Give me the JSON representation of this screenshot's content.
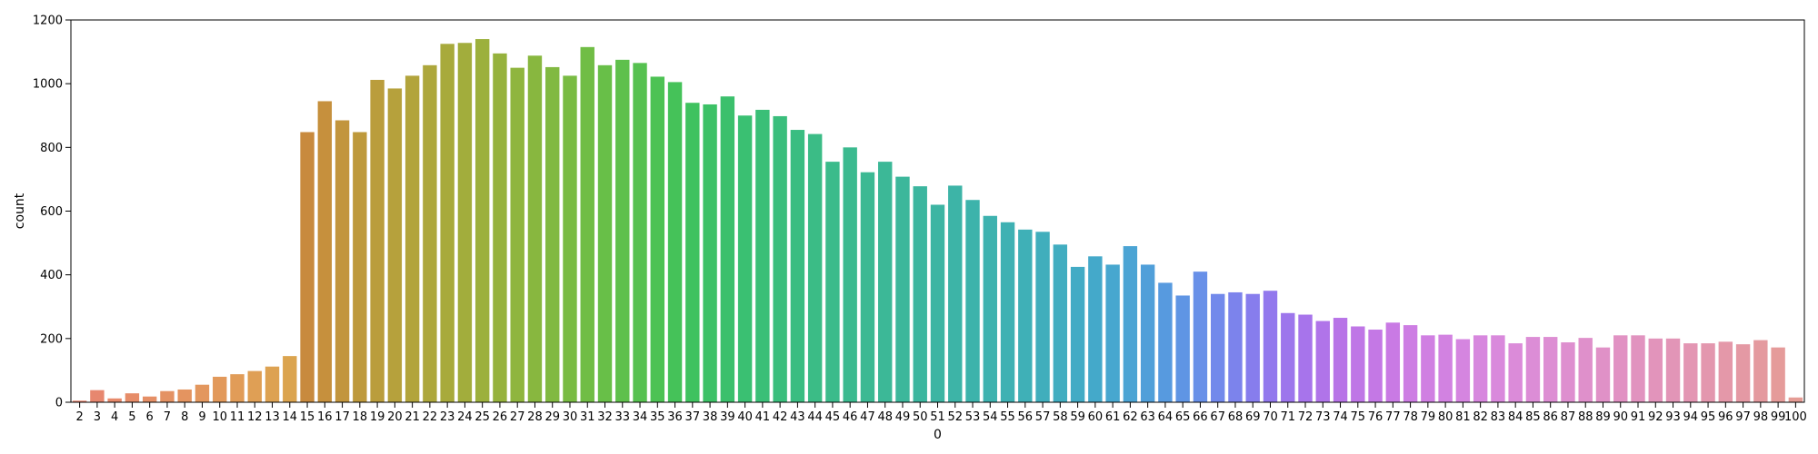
{
  "chart_data": {
    "type": "bar",
    "xlabel": "0",
    "ylabel": "count",
    "ylim": [
      0,
      1200
    ],
    "yticks": [
      0,
      200,
      400,
      600,
      800,
      1000,
      1200
    ],
    "grid": false,
    "legend": "none",
    "categories": [
      "2",
      "3",
      "4",
      "5",
      "6",
      "7",
      "8",
      "9",
      "10",
      "11",
      "12",
      "13",
      "14",
      "15",
      "16",
      "17",
      "18",
      "19",
      "20",
      "21",
      "22",
      "23",
      "24",
      "25",
      "26",
      "27",
      "28",
      "29",
      "30",
      "31",
      "32",
      "33",
      "34",
      "35",
      "36",
      "37",
      "38",
      "39",
      "40",
      "41",
      "42",
      "43",
      "44",
      "45",
      "46",
      "47",
      "48",
      "49",
      "50",
      "51",
      "52",
      "53",
      "54",
      "55",
      "56",
      "57",
      "58",
      "59",
      "60",
      "61",
      "62",
      "63",
      "64",
      "65",
      "66",
      "67",
      "68",
      "69",
      "70",
      "71",
      "72",
      "73",
      "74",
      "75",
      "76",
      "77",
      "78",
      "79",
      "80",
      "81",
      "82",
      "83",
      "84",
      "85",
      "86",
      "87",
      "88",
      "89",
      "90",
      "91",
      "92",
      "93",
      "94",
      "95",
      "96",
      "97",
      "98",
      "99",
      "100"
    ],
    "values": [
      5,
      38,
      12,
      28,
      18,
      35,
      40,
      55,
      80,
      88,
      98,
      112,
      145,
      848,
      945,
      885,
      848,
      1012,
      985,
      1025,
      1058,
      1125,
      1128,
      1140,
      1095,
      1050,
      1088,
      1052,
      1025,
      1115,
      1058,
      1075,
      1065,
      1022,
      1005,
      940,
      935,
      960,
      900,
      918,
      898,
      855,
      842,
      755,
      800,
      722,
      755,
      708,
      678,
      620,
      680,
      635,
      585,
      565,
      542,
      535,
      495,
      425,
      458,
      432,
      490,
      432,
      375,
      335,
      410,
      340,
      345,
      340,
      350,
      280,
      275,
      255,
      265,
      238,
      228,
      250,
      242,
      210,
      212,
      198,
      210,
      210,
      185,
      205,
      205,
      188,
      202,
      172,
      210,
      210,
      200,
      200,
      185,
      185,
      190,
      182,
      195,
      172,
      15
    ],
    "colors": [
      "#e7856f",
      "#e7876f",
      "#e78a6b",
      "#e68c68",
      "#e58f66",
      "#e49263",
      "#e49460",
      "#e3975e",
      "#e2995b",
      "#e19c58",
      "#df9f55",
      "#dda252",
      "#dba44f",
      "#c88a3e",
      "#c6903d",
      "#c2953d",
      "#be993c",
      "#ba9d3c",
      "#b6a13c",
      "#b2a43c",
      "#ada73c",
      "#a8aa3c",
      "#a2ad3c",
      "#9cb03d",
      "#96b23d",
      "#8fb53e",
      "#88b73f",
      "#81b941",
      "#79bb43",
      "#70bd45",
      "#68bf48",
      "#5fc04c",
      "#56c150",
      "#4dc254",
      "#45c259",
      "#3fc25f",
      "#3cc166",
      "#3bc06c",
      "#3ac072",
      "#3abf77",
      "#3abe7c",
      "#3abd81",
      "#3bbc86",
      "#3bbb8b",
      "#3bba8f",
      "#3cb993",
      "#3cb897",
      "#3cb79b",
      "#3cb69f",
      "#3db5a3",
      "#3db4a7",
      "#3db3ab",
      "#3eb2af",
      "#3eb1b3",
      "#3fb0b7",
      "#40aebc",
      "#41adc0",
      "#42abc5",
      "#44a9ca",
      "#47a7cf",
      "#4ba4d4",
      "#509fd9",
      "#579adf",
      "#5f95e4",
      "#6890e8",
      "#7289eb",
      "#7c83ec",
      "#877ded",
      "#9278ed",
      "#9d76ec",
      "#a774eb",
      "#b074e9",
      "#b874e7",
      "#bf76e6",
      "#c478e5",
      "#c97ae4",
      "#cd7de3",
      "#d07fe2",
      "#d282e1",
      "#d585e0",
      "#d787de",
      "#d989dc",
      "#db8bd9",
      "#dc8dd6",
      "#dd8ed3",
      "#de8fcf",
      "#df90cb",
      "#e091c7",
      "#e192c3",
      "#e193bf",
      "#e294bb",
      "#e295b7",
      "#e396b3",
      "#e397ae",
      "#e498a9",
      "#e499a4",
      "#e49a9f",
      "#e59b9a",
      "#e59c95"
    ]
  }
}
